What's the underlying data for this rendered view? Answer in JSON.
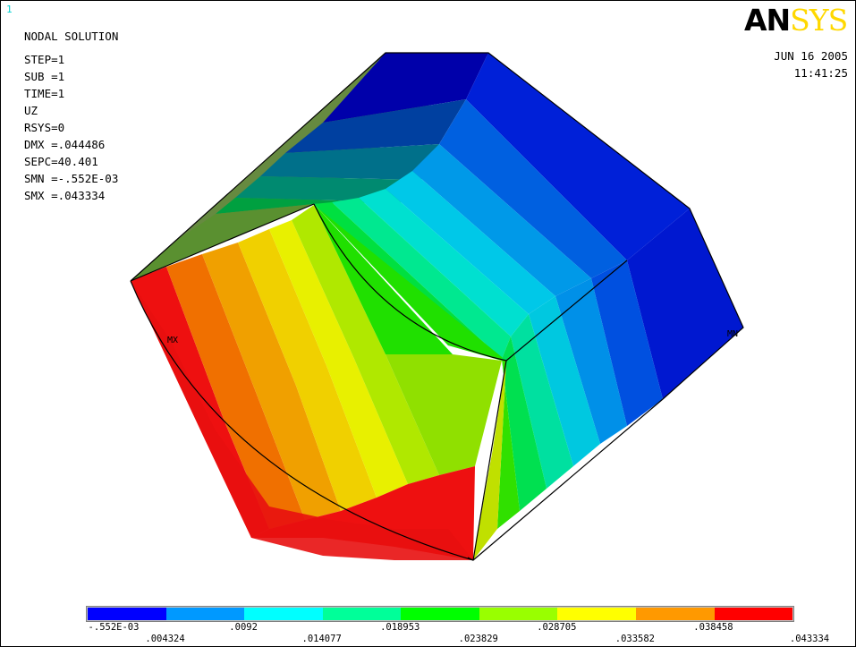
{
  "window_number": "1",
  "info": {
    "title": "NODAL SOLUTION",
    "lines": [
      "STEP=1",
      "SUB =1",
      "TIME=1",
      "UZ",
      "RSYS=0",
      "DMX =.044486",
      "SEPC=40.401",
      "SMN =-.552E-03",
      "SMX =.043334"
    ]
  },
  "logo": {
    "part1": "AN",
    "part2": "SYS"
  },
  "date": "JUN 16 2005",
  "time": "11:41:25",
  "markers": {
    "max": "MX",
    "min": "MN"
  },
  "legend": {
    "colors": [
      "#0000ff",
      "#0099ff",
      "#00ffff",
      "#00ff99",
      "#00ff00",
      "#99ff00",
      "#ffff00",
      "#ff9900",
      "#ff0000"
    ],
    "top_labels": [
      "-.552E-03",
      ".0092",
      ".018953",
      ".028705",
      ".038458"
    ],
    "bottom_labels": [
      ".004324",
      ".014077",
      ".023829",
      ".033582",
      ".043334"
    ]
  }
}
